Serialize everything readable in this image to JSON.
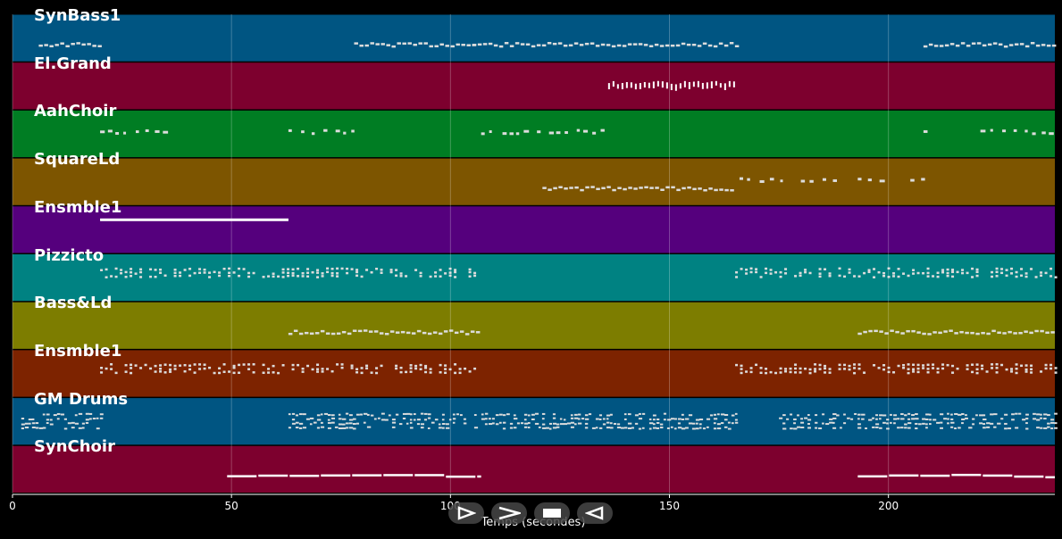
{
  "colors": {
    "background": "#000000",
    "grid": "#ffffff",
    "note": "#dcdcdc"
  },
  "tracks": [
    {
      "name": "SynBass1",
      "color": "#005582",
      "segments": [
        [
          6,
          20,
          "dash"
        ],
        [
          78,
          105,
          "dash"
        ],
        [
          105,
          165,
          "dash"
        ],
        [
          208,
          238,
          "dash"
        ]
      ]
    },
    {
      "name": "El.Grand",
      "color": "#7d002e",
      "segments": [
        [
          136,
          165,
          "tick"
        ]
      ]
    },
    {
      "name": "AahChoir",
      "color": "#007d23",
      "segments": [
        [
          20,
          35,
          "dot"
        ],
        [
          63,
          78,
          "dot"
        ],
        [
          107,
          135,
          "dot"
        ],
        [
          208,
          209,
          "dot"
        ],
        [
          221,
          238,
          "dot"
        ]
      ]
    },
    {
      "name": "SquareLd",
      "color": "#7d5500",
      "segments": [
        [
          121,
          165,
          "dash"
        ],
        [
          166,
          176,
          "dot"
        ],
        [
          180,
          188,
          "dot"
        ],
        [
          193,
          200,
          "dot"
        ],
        [
          205,
          208,
          "dot"
        ]
      ]
    },
    {
      "name": "Ensmble1",
      "color": "#55007d",
      "segments": [
        [
          20,
          63,
          "line"
        ]
      ]
    },
    {
      "name": "Pizzicto",
      "color": "#008282",
      "segments": [
        [
          20,
          106,
          "pizz"
        ],
        [
          165,
          238,
          "pizz"
        ]
      ]
    },
    {
      "name": "Bass&Ld",
      "color": "#7d7d00",
      "segments": [
        [
          63,
          106,
          "dash"
        ],
        [
          193,
          238,
          "dash"
        ]
      ]
    },
    {
      "name": "Ensmble1",
      "color": "#7d2300",
      "segments": [
        [
          20,
          106,
          "pizz"
        ],
        [
          165,
          238,
          "pizz"
        ]
      ]
    },
    {
      "name": "GM Drums",
      "color": "#005582",
      "segments": [
        [
          2,
          20,
          "drum"
        ],
        [
          63,
          165,
          "drum"
        ],
        [
          175,
          238,
          "drum"
        ]
      ]
    },
    {
      "name": "SynChoir",
      "color": "#7d002e",
      "segments": [
        [
          49,
          107,
          "line2"
        ],
        [
          193,
          238,
          "line2"
        ]
      ]
    }
  ],
  "axis": {
    "xlim": [
      0,
      238
    ],
    "ticks": [
      {
        "value": 0,
        "label": "0"
      },
      {
        "value": 50,
        "label": "50"
      },
      {
        "value": 100,
        "label": "100"
      },
      {
        "value": 150,
        "label": "150"
      },
      {
        "value": 200,
        "label": "200"
      }
    ],
    "xlabel": "Temps (secondes)",
    "grid": true
  },
  "transport": [
    {
      "name": "play-icon",
      "glyph": "play"
    },
    {
      "name": "fast-forward-icon",
      "glyph": "ff"
    },
    {
      "name": "stop-icon",
      "glyph": "stop"
    },
    {
      "name": "rewind-icon",
      "glyph": "rew"
    }
  ]
}
